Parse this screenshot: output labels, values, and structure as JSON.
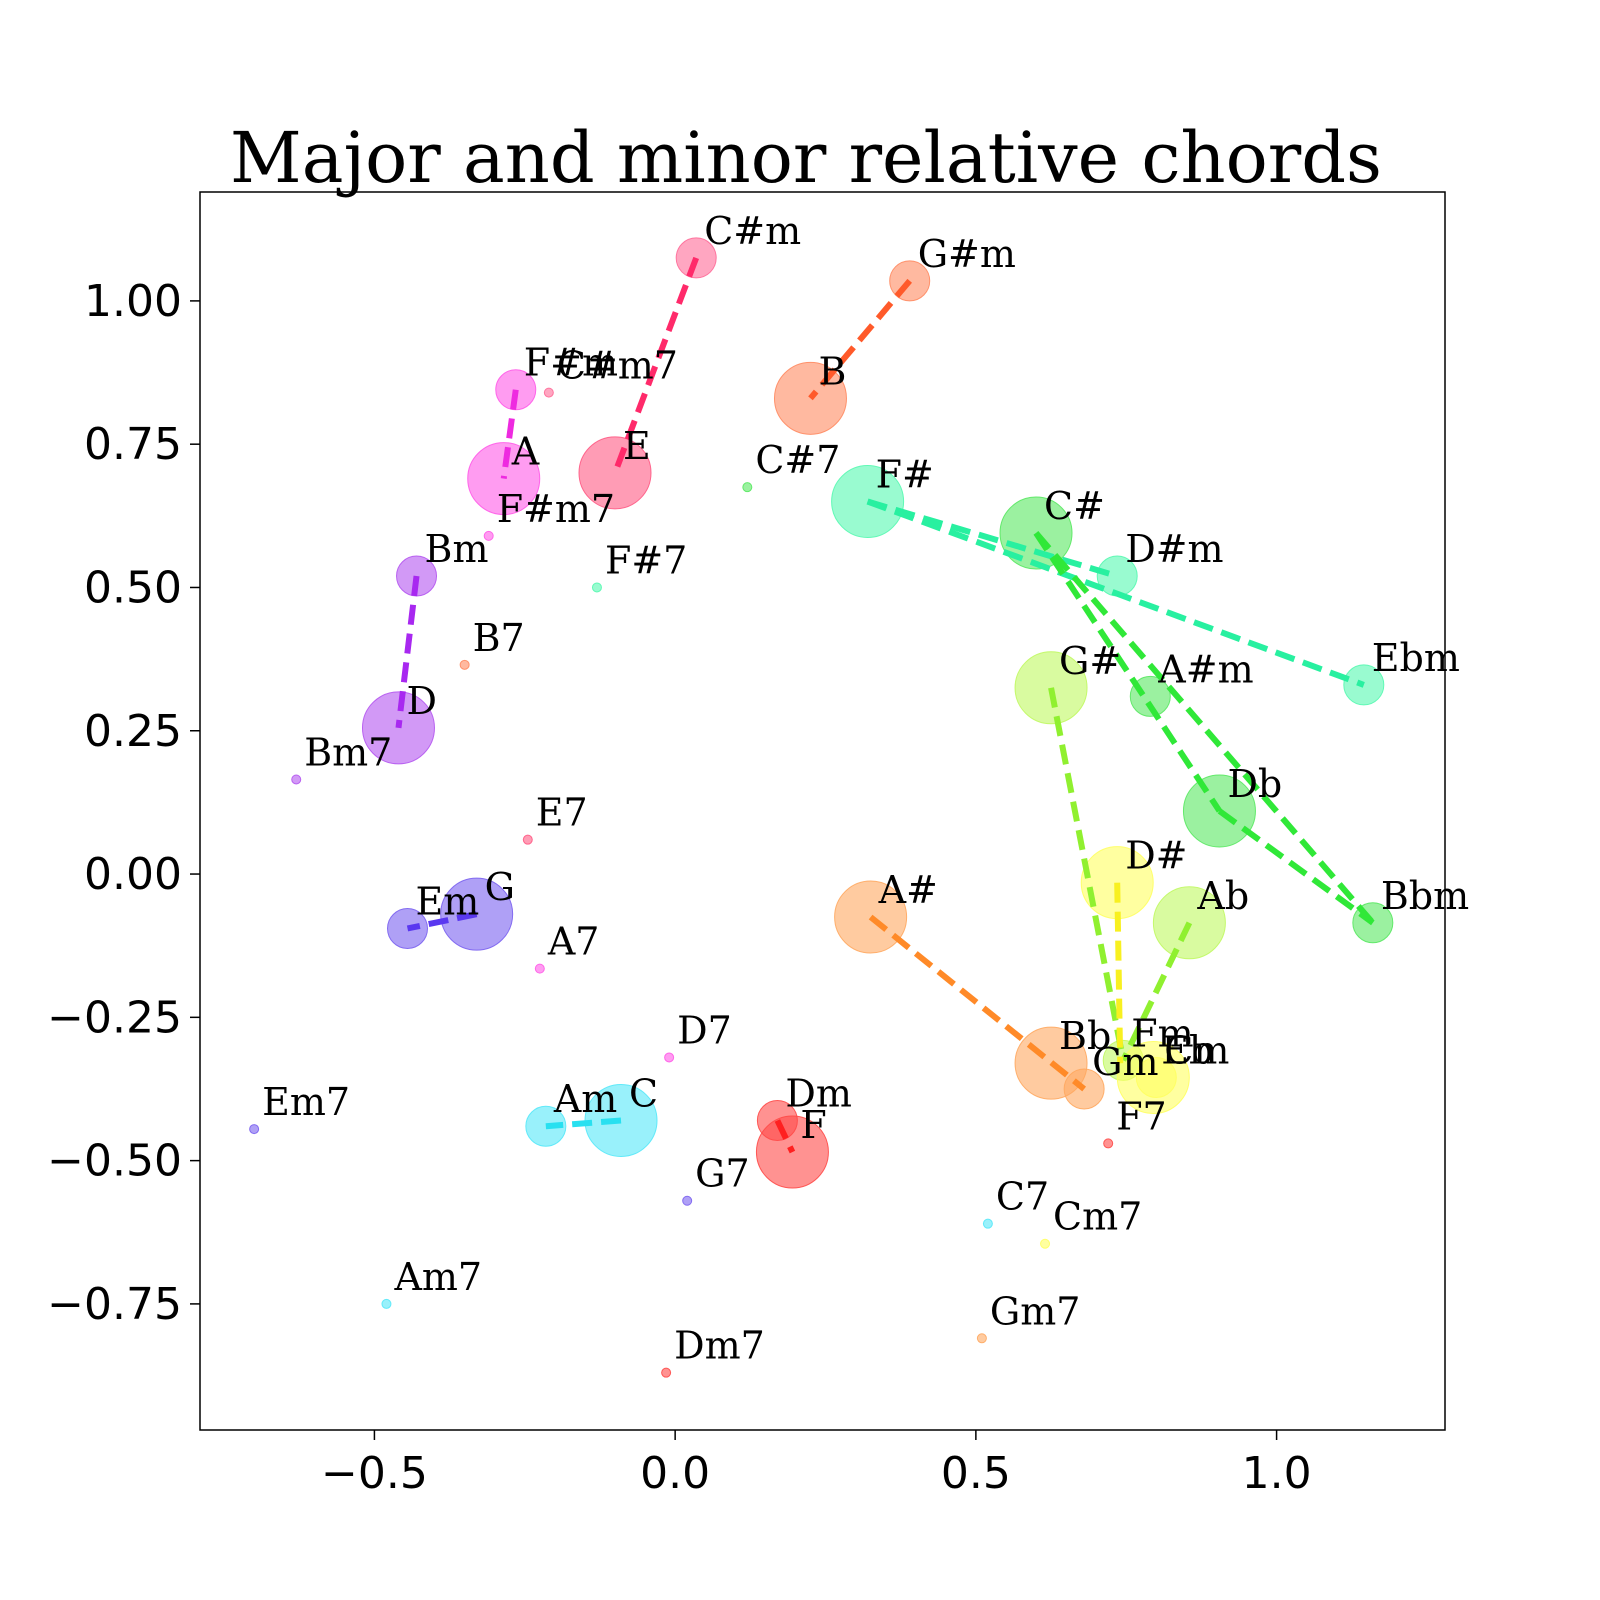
{
  "chart_data": {
    "type": "scatter",
    "title": "Major and minor relative chords",
    "xlabel": "",
    "ylabel": "",
    "xlim": [
      -0.79,
      1.28
    ],
    "ylim": [
      -0.97,
      1.19
    ],
    "xticks": [
      -0.5,
      0.0,
      0.5,
      1.0
    ],
    "xtick_labels": [
      "−0.5",
      "0.0",
      "0.5",
      "1.0"
    ],
    "yticks": [
      1.0,
      0.75,
      0.5,
      0.25,
      0.0,
      -0.25,
      -0.5,
      -0.75
    ],
    "ytick_labels": [
      "1.00",
      "0.75",
      "0.50",
      "0.25",
      "0.00",
      "−0.25",
      "−0.50",
      "−0.75"
    ],
    "grid": false,
    "legend": "none",
    "marker_size_levels": {
      "major": "large",
      "minor": "medium",
      "seventh": "small"
    },
    "points": [
      {
        "label": "C#m",
        "x": 0.035,
        "y": 1.075,
        "size": "minor",
        "color": "#ff6a98"
      },
      {
        "label": "G#m",
        "x": 0.39,
        "y": 1.035,
        "size": "minor",
        "color": "#ff8a60"
      },
      {
        "label": "C#m7",
        "x": -0.21,
        "y": 0.84,
        "size": "seventh",
        "color": "#ff6a98"
      },
      {
        "label": "B",
        "x": 0.225,
        "y": 0.83,
        "size": "major",
        "color": "#ff8a60"
      },
      {
        "label": "F#m",
        "x": -0.265,
        "y": 0.845,
        "size": "minor",
        "color": "#ff5ae8"
      },
      {
        "label": "A",
        "x": -0.285,
        "y": 0.69,
        "size": "major",
        "color": "#ff5ae8"
      },
      {
        "label": "E",
        "x": -0.1,
        "y": 0.7,
        "size": "major",
        "color": "#ff5a84"
      },
      {
        "label": "C#7",
        "x": 0.12,
        "y": 0.675,
        "size": "seventh",
        "color": "#58e860"
      },
      {
        "label": "F#",
        "x": 0.32,
        "y": 0.65,
        "size": "major",
        "color": "#55f8b0"
      },
      {
        "label": "F#m7",
        "x": -0.31,
        "y": 0.59,
        "size": "seventh",
        "color": "#ff5ae8"
      },
      {
        "label": "C#",
        "x": 0.6,
        "y": 0.595,
        "size": "major",
        "color": "#58e860"
      },
      {
        "label": "D#m",
        "x": 0.735,
        "y": 0.52,
        "size": "minor",
        "color": "#55f8b0"
      },
      {
        "label": "Bm",
        "x": -0.43,
        "y": 0.52,
        "size": "minor",
        "color": "#b455f0"
      },
      {
        "label": "F#7",
        "x": -0.13,
        "y": 0.5,
        "size": "seventh",
        "color": "#55f8b0"
      },
      {
        "label": "B7",
        "x": -0.35,
        "y": 0.365,
        "size": "seventh",
        "color": "#ff8a60"
      },
      {
        "label": "Ebm",
        "x": 1.145,
        "y": 0.33,
        "size": "minor",
        "color": "#55f8b0"
      },
      {
        "label": "G#",
        "x": 0.625,
        "y": 0.325,
        "size": "major",
        "color": "#c0f860"
      },
      {
        "label": "A#m",
        "x": 0.79,
        "y": 0.31,
        "size": "minor",
        "color": "#58e860"
      },
      {
        "label": "D",
        "x": -0.46,
        "y": 0.255,
        "size": "major",
        "color": "#b455f0"
      },
      {
        "label": "Bm7",
        "x": -0.63,
        "y": 0.165,
        "size": "seventh",
        "color": "#b455f0"
      },
      {
        "label": "Db",
        "x": 0.905,
        "y": 0.11,
        "size": "major",
        "color": "#58e860"
      },
      {
        "label": "E7",
        "x": -0.245,
        "y": 0.06,
        "size": "seventh",
        "color": "#ff5a84"
      },
      {
        "label": "D#",
        "x": 0.735,
        "y": -0.015,
        "size": "major",
        "color": "#ffff60"
      },
      {
        "label": "Bbm",
        "x": 1.16,
        "y": -0.085,
        "size": "minor",
        "color": "#58e860"
      },
      {
        "label": "Ab",
        "x": 0.855,
        "y": -0.085,
        "size": "major",
        "color": "#c0f860"
      },
      {
        "label": "A#",
        "x": 0.325,
        "y": -0.075,
        "size": "major",
        "color": "#ffa860"
      },
      {
        "label": "G",
        "x": -0.33,
        "y": -0.07,
        "size": "major",
        "color": "#7a60f0"
      },
      {
        "label": "Em",
        "x": -0.445,
        "y": -0.095,
        "size": "minor",
        "color": "#7a60f0"
      },
      {
        "label": "A7",
        "x": -0.225,
        "y": -0.165,
        "size": "seventh",
        "color": "#ff5ae8"
      },
      {
        "label": "D7",
        "x": -0.01,
        "y": -0.32,
        "size": "seventh",
        "color": "#ff5ae8"
      },
      {
        "label": "Bb",
        "x": 0.625,
        "y": -0.33,
        "size": "major",
        "color": "#ffa860"
      },
      {
        "label": "Fm",
        "x": 0.745,
        "y": -0.325,
        "size": "minor",
        "color": "#c0f860"
      },
      {
        "label": "Cm",
        "x": 0.8,
        "y": -0.355,
        "size": "minor",
        "color": "#ffff60"
      },
      {
        "label": "Eb",
        "x": 0.795,
        "y": -0.355,
        "size": "major",
        "color": "#ffff60"
      },
      {
        "label": "Gm",
        "x": 0.68,
        "y": -0.375,
        "size": "minor",
        "color": "#ffa860"
      },
      {
        "label": "C",
        "x": -0.09,
        "y": -0.43,
        "size": "major",
        "color": "#55e8f8"
      },
      {
        "label": "Am",
        "x": -0.215,
        "y": -0.44,
        "size": "minor",
        "color": "#55e8f8"
      },
      {
        "label": "Dm",
        "x": 0.17,
        "y": -0.43,
        "size": "minor",
        "color": "#ff4a48"
      },
      {
        "label": "F",
        "x": 0.195,
        "y": -0.485,
        "size": "major",
        "color": "#ff4a48"
      },
      {
        "label": "Em7",
        "x": -0.7,
        "y": -0.445,
        "size": "seventh",
        "color": "#7a60f0"
      },
      {
        "label": "F7",
        "x": 0.72,
        "y": -0.47,
        "size": "seventh",
        "color": "#ff4a48"
      },
      {
        "label": "G7",
        "x": 0.02,
        "y": -0.57,
        "size": "seventh",
        "color": "#7a60f0"
      },
      {
        "label": "C7",
        "x": 0.52,
        "y": -0.61,
        "size": "seventh",
        "color": "#55e8f8"
      },
      {
        "label": "Cm7",
        "x": 0.615,
        "y": -0.645,
        "size": "seventh",
        "color": "#ffff60"
      },
      {
        "label": "Am7",
        "x": -0.48,
        "y": -0.75,
        "size": "seventh",
        "color": "#55e8f8"
      },
      {
        "label": "Gm7",
        "x": 0.51,
        "y": -0.81,
        "size": "seventh",
        "color": "#ffa860"
      },
      {
        "label": "Dm7",
        "x": -0.015,
        "y": -0.87,
        "size": "seventh",
        "color": "#ff4a48"
      }
    ],
    "links": [
      {
        "x": [
          0.035,
          -0.1
        ],
        "y": [
          1.075,
          0.7
        ],
        "color": "#ff2a6a"
      },
      {
        "x": [
          0.39,
          0.225
        ],
        "y": [
          1.035,
          0.83
        ],
        "color": "#ff5a2a"
      },
      {
        "x": [
          -0.265,
          -0.285
        ],
        "y": [
          0.845,
          0.69
        ],
        "color": "#ee2ae0"
      },
      {
        "x": [
          -0.43,
          -0.46
        ],
        "y": [
          0.52,
          0.255
        ],
        "color": "#a828f0"
      },
      {
        "x": [
          0.32,
          1.145
        ],
        "y": [
          0.65,
          0.33
        ],
        "color": "#28f0a0"
      },
      {
        "x": [
          0.32,
          0.735
        ],
        "y": [
          0.65,
          0.52
        ],
        "color": "#28f0a0"
      },
      {
        "x": [
          0.6,
          0.905
        ],
        "y": [
          0.595,
          0.11
        ],
        "color": "#30e838"
      },
      {
        "x": [
          0.6,
          1.16
        ],
        "y": [
          0.595,
          -0.085
        ],
        "color": "#30e838"
      },
      {
        "x": [
          0.905,
          1.16
        ],
        "y": [
          0.11,
          -0.085
        ],
        "color": "#30e838"
      },
      {
        "x": [
          0.625,
          0.745
        ],
        "y": [
          0.325,
          -0.325
        ],
        "color": "#90f030"
      },
      {
        "x": [
          0.855,
          0.745
        ],
        "y": [
          -0.085,
          -0.325
        ],
        "color": "#90f030"
      },
      {
        "x": [
          0.735,
          0.74
        ],
        "y": [
          -0.015,
          -0.33
        ],
        "color": "#f8f020"
      },
      {
        "x": [
          0.325,
          0.68
        ],
        "y": [
          -0.075,
          -0.375
        ],
        "color": "#ff8a28"
      },
      {
        "x": [
          -0.33,
          -0.445
        ],
        "y": [
          -0.07,
          -0.095
        ],
        "color": "#5a38f0"
      },
      {
        "x": [
          -0.09,
          -0.215
        ],
        "y": [
          -0.43,
          -0.44
        ],
        "color": "#28e0f0"
      },
      {
        "x": [
          0.17,
          0.195
        ],
        "y": [
          -0.43,
          -0.485
        ],
        "color": "#ff2020"
      }
    ]
  }
}
